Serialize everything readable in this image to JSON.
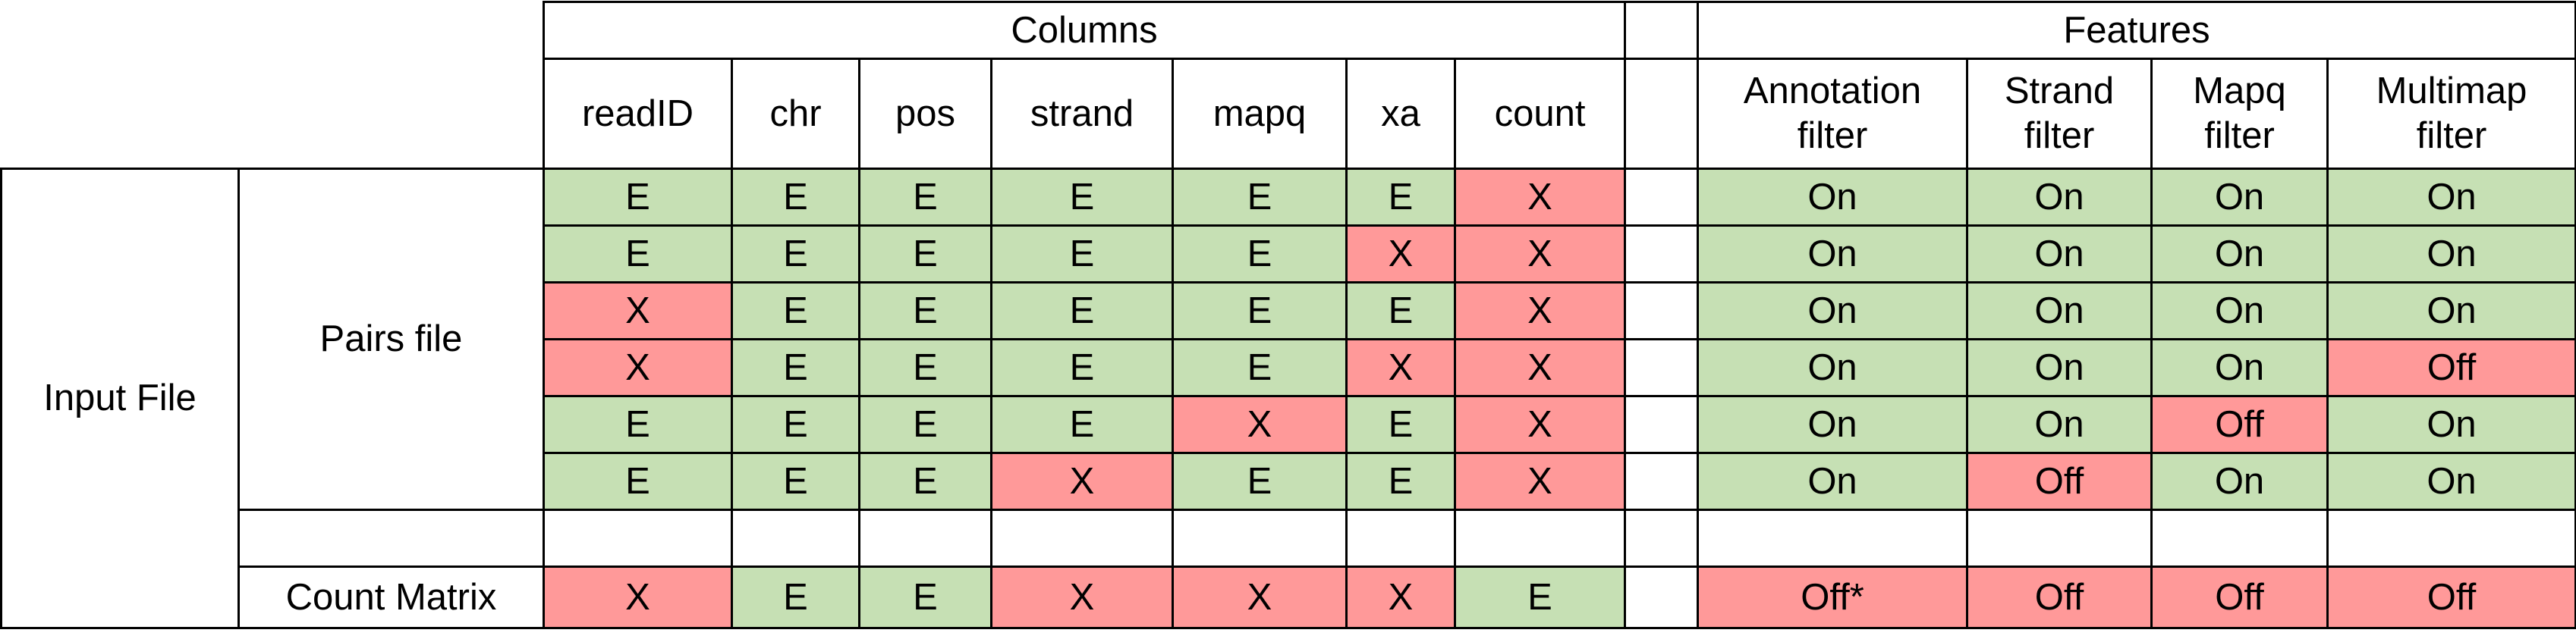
{
  "header": {
    "columns_title": "Columns",
    "features_title": "Features",
    "columns": [
      "readID",
      "chr",
      "pos",
      "strand",
      "mapq",
      "xa",
      "count"
    ],
    "features": [
      "Annotation filter",
      "Strand filter",
      "Mapq filter",
      "Multimap filter"
    ]
  },
  "row_labels": {
    "input_file": "Input File",
    "pairs_file": "Pairs file",
    "count_matrix": "Count Matrix"
  },
  "pairs_rows": [
    {
      "columns": [
        "E",
        "E",
        "E",
        "E",
        "E",
        "E",
        "X"
      ],
      "features": [
        "On",
        "On",
        "On",
        "On"
      ]
    },
    {
      "columns": [
        "E",
        "E",
        "E",
        "E",
        "E",
        "X",
        "X"
      ],
      "features": [
        "On",
        "On",
        "On",
        "On"
      ]
    },
    {
      "columns": [
        "X",
        "E",
        "E",
        "E",
        "E",
        "E",
        "X"
      ],
      "features": [
        "On",
        "On",
        "On",
        "On"
      ]
    },
    {
      "columns": [
        "X",
        "E",
        "E",
        "E",
        "E",
        "X",
        "X"
      ],
      "features": [
        "On",
        "On",
        "On",
        "Off"
      ]
    },
    {
      "columns": [
        "E",
        "E",
        "E",
        "E",
        "X",
        "E",
        "X"
      ],
      "features": [
        "On",
        "On",
        "Off",
        "On"
      ]
    },
    {
      "columns": [
        "E",
        "E",
        "E",
        "X",
        "E",
        "E",
        "X"
      ],
      "features": [
        "On",
        "Off",
        "On",
        "On"
      ]
    }
  ],
  "count_matrix_row": {
    "columns": [
      "X",
      "E",
      "E",
      "X",
      "X",
      "X",
      "E"
    ],
    "features": [
      "Off*",
      "Off",
      "Off",
      "Off"
    ]
  },
  "colors": {
    "enabled_green": "#c6e0b4",
    "disabled_red": "#ff9999"
  }
}
